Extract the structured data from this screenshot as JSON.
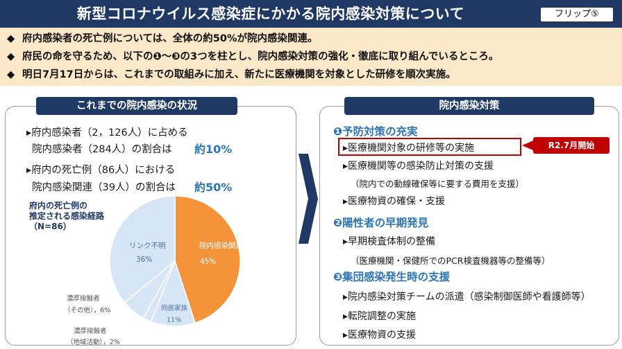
{
  "header": {
    "title": "新型コロナウイルス感染症にかかる院内感染対策について",
    "flip": "フリップ⑤"
  },
  "summary": [
    {
      "bullet": "◆",
      "text": "府内感染者の死亡例については、全体の約50%が院内感染関連。"
    },
    {
      "bullet": "◆",
      "text": "府民の命を守るため、以下の❶～❸の3つを柱とし、院内感染対策の強化・徹底に取り組んでいるところ。"
    },
    {
      "bullet": "◆",
      "text": "明日7月17日からは、これまでの取組みに加え、新たに医療機関を対象とした研修を順次実施。"
    }
  ],
  "left_panel": {
    "heading": "これまでの院内感染の状況",
    "stats": [
      {
        "line1": "▸府内感染者（2，126人）に占める",
        "line2": "院内感染者（284人）の割合は",
        "value": "約10%"
      },
      {
        "line1": "▸府内の死亡例（86人）における",
        "line2": "院内感染関連（39人）の割合は",
        "value": "約50%"
      }
    ],
    "pie_title": [
      "府内の死亡例の",
      "推定される感染経路",
      "（N=86）"
    ]
  },
  "chart_data": {
    "type": "pie",
    "title": "府内の死亡例の推定される感染経路（N=86）",
    "slices": [
      {
        "label": "院内感染関連",
        "value": 45,
        "color": "#f4933a"
      },
      {
        "label": "同居家族",
        "value": 11,
        "color": "#d6e6f7"
      },
      {
        "label": "濃厚接触者（地域活動）",
        "value": 2,
        "color": "#d6e6f7"
      },
      {
        "label": "濃厚接触者（その他）",
        "value": 6,
        "color": "#d6e6f7"
      },
      {
        "label": "リンク不明",
        "value": 36,
        "color": "#d6e6f7"
      }
    ],
    "labels": {
      "in_hospital": {
        "name": "院内感染関連",
        "pct": "45%"
      },
      "family": {
        "name": "同居家族",
        "pct": "11%"
      },
      "contact_local": {
        "name1": "濃厚接触者",
        "name2": "（地域活動）",
        "pct": "，2%"
      },
      "contact_other": {
        "name1": "濃厚接触者",
        "name2": "（その他）",
        "pct": "，6%"
      },
      "unknown": {
        "name": "リンク不明",
        "pct": "36%"
      }
    }
  },
  "right_panel": {
    "heading": "院内感染対策",
    "sections": [
      {
        "title": "❶予防対策の充実",
        "items": [
          "▸医療機関対象の研修等の実施",
          "▸医療機関等の感染防止対策の支援"
        ],
        "note": "（院内での動線確保等に要する費用を支援）",
        "item3": "▸医療物資の確保・支援"
      },
      {
        "title": "❷陽性者の早期発見",
        "items": [
          "▸早期検査体制の整備"
        ],
        "note": "（医療機関・保健所でのPCR検査機器等の整備等）"
      },
      {
        "title": "❸集団感染発生時の支援",
        "items": [
          "▸院内感染対策チームの派遣（感染制御医師や看護師等）",
          "▸転院調整の実施",
          "▸医療物資の支援"
        ]
      }
    ],
    "tag": "R2.7月開始"
  }
}
